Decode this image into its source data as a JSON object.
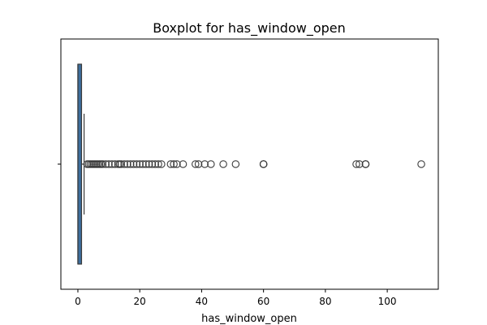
{
  "chart_data": {
    "type": "boxplot",
    "orientation": "horizontal",
    "title": "Boxplot for has_window_open",
    "xlabel": "has_window_open",
    "ylabel": "",
    "xlim": [
      -5.5,
      116.5
    ],
    "xticks": [
      0,
      20,
      40,
      60,
      80,
      100
    ],
    "grid": false,
    "box": {
      "min": 0,
      "q1": 0,
      "median": 0,
      "q3": 1,
      "max": 2,
      "color": "#3d6e9e"
    },
    "outliers": [
      3,
      3.5,
      4,
      4.5,
      5,
      5.5,
      6,
      6.5,
      7,
      7.5,
      8,
      9,
      10,
      11,
      12,
      13,
      13.5,
      14,
      15,
      16,
      17,
      18,
      19,
      20,
      21,
      22,
      23,
      24,
      25,
      26,
      27,
      30,
      31,
      32,
      34,
      38,
      39,
      41,
      43,
      47,
      51,
      60,
      60,
      60,
      90,
      91,
      93,
      93,
      93,
      111
    ]
  }
}
